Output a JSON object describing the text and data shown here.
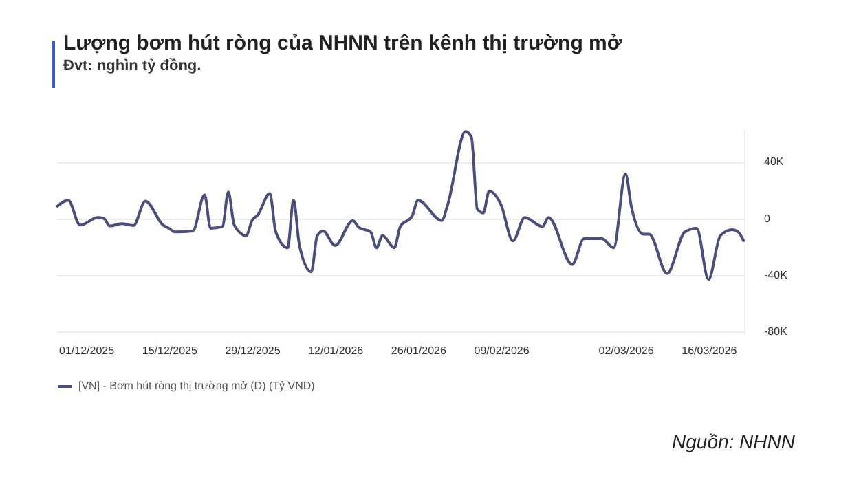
{
  "chart_data": {
    "type": "line",
    "title": "Lượng bơm hút ròng của NHNN trên kênh thị trường mở",
    "subtitle": "Đvt: nghìn tỷ đồng.",
    "x": [
      "2025-11-26",
      "2025-11-28",
      "2025-11-30",
      "2025-12-03",
      "2025-12-04",
      "2025-12-05",
      "2025-12-07",
      "2025-12-09",
      "2025-12-11",
      "2025-12-14",
      "2025-12-15",
      "2025-12-16",
      "2025-12-19",
      "2025-12-21",
      "2025-12-22",
      "2025-12-24",
      "2025-12-25",
      "2025-12-26",
      "2025-12-28",
      "2025-12-29",
      "2025-12-30",
      "2026-01-01",
      "2026-01-02",
      "2026-01-04",
      "2026-01-05",
      "2026-01-06",
      "2026-01-08",
      "2026-01-09",
      "2026-01-10",
      "2026-01-12",
      "2026-01-15",
      "2026-01-16",
      "2026-01-18",
      "2026-01-19",
      "2026-01-20",
      "2026-01-22",
      "2026-01-23",
      "2026-01-25",
      "2026-01-26",
      "2026-01-30",
      "2026-01-31",
      "2026-02-03",
      "2026-02-04",
      "2026-02-05",
      "2026-02-06",
      "2026-02-07",
      "2026-02-09",
      "2026-02-11",
      "2026-02-13",
      "2026-02-16",
      "2026-02-17",
      "2026-02-21",
      "2026-02-23",
      "2026-02-26",
      "2026-02-28",
      "2026-03-02",
      "2026-03-03",
      "2026-03-05",
      "2026-03-06",
      "2026-03-09",
      "2026-03-12",
      "2026-03-14",
      "2026-03-16",
      "2026-03-18",
      "2026-03-20",
      "2026-03-21",
      "2026-03-22"
    ],
    "series": [
      {
        "name": "[VN] - Bơm hút ròng thị trường mở (D) (Tỷ VND)",
        "color": "#4a4e7c",
        "values": [
          8000,
          12800,
          -4800,
          600,
          0,
          -5400,
          -3800,
          -5100,
          12200,
          -4800,
          -7000,
          -9600,
          -9000,
          16600,
          -7000,
          -5800,
          18600,
          -4800,
          -12200,
          -1600,
          2600,
          17600,
          -9600,
          -20800,
          12800,
          -19200,
          -37800,
          -12200,
          -9000,
          -19200,
          -1600,
          -6400,
          -9600,
          -20800,
          -12200,
          -20800,
          -5800,
          1600,
          12800,
          -1600,
          9600,
          61400,
          57600,
          6400,
          3800,
          19200,
          9600,
          -16000,
          600,
          -5800,
          600,
          -32600,
          -14400,
          -14400,
          -20800,
          31400,
          8000,
          -11200,
          -11200,
          -39000,
          -9600,
          -7000,
          -43200,
          -12200,
          -8000,
          -9600,
          -16600
        ]
      }
    ],
    "xlim": [
      "2025-11-26",
      "2026-03-22"
    ],
    "xticks": [
      {
        "value": "2025-12-01",
        "label": "01/12/2025"
      },
      {
        "value": "2025-12-15",
        "label": "15/12/2025"
      },
      {
        "value": "2025-12-29",
        "label": "29/12/2025"
      },
      {
        "value": "2026-01-12",
        "label": "12/01/2026"
      },
      {
        "value": "2026-01-26",
        "label": "26/01/2026"
      },
      {
        "value": "2026-02-09",
        "label": "09/02/2026"
      },
      {
        "value": "2026-03-02",
        "label": "02/03/2026"
      },
      {
        "value": "2026-03-16",
        "label": "16/03/2026"
      }
    ],
    "ylim": [
      -82000,
      64000
    ],
    "yticks": [
      {
        "value": -80000,
        "label": "-80K"
      },
      {
        "value": -40000,
        "label": "-40K"
      },
      {
        "value": 0,
        "label": "0"
      },
      {
        "value": 40000,
        "label": "40K"
      }
    ],
    "grid": "y",
    "legend": "bottom",
    "line_style": "solid",
    "annotations": [
      "Nguồn: NHNN"
    ]
  }
}
